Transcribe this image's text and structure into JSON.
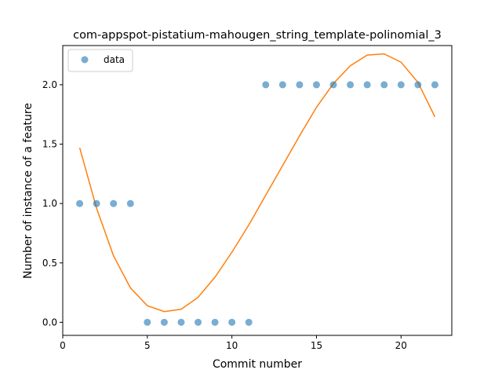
{
  "chart_data": {
    "type": "scatter",
    "title": "com-appspot-pistatium-mahougen_string_template-polinomial_3",
    "xlabel": "Commit number",
    "ylabel": "Number of instance of a feature",
    "xlim": [
      0,
      23
    ],
    "ylim": [
      -0.11,
      2.33
    ],
    "xticks": [
      0,
      5,
      10,
      15,
      20
    ],
    "yticks": [
      0.0,
      0.5,
      1.0,
      1.5,
      2.0
    ],
    "xtick_labels": [
      "0",
      "5",
      "10",
      "15",
      "20"
    ],
    "ytick_labels": [
      "0.0",
      "0.5",
      "1.0",
      "1.5",
      "2.0"
    ],
    "legend": {
      "position": "upper-left",
      "entries": [
        "data"
      ]
    },
    "grid": false,
    "series": [
      {
        "name": "data",
        "kind": "scatter",
        "color": "#1f77b4",
        "x": [
          1,
          2,
          3,
          4,
          5,
          6,
          7,
          8,
          9,
          10,
          11,
          12,
          13,
          14,
          15,
          16,
          17,
          18,
          19,
          20,
          21,
          22
        ],
        "y": [
          1,
          1,
          1,
          1,
          0,
          0,
          0,
          0,
          0,
          0,
          0,
          2,
          2,
          2,
          2,
          2,
          2,
          2,
          2,
          2,
          2,
          2
        ]
      },
      {
        "kind": "line",
        "color": "#ff7f0e",
        "x": [
          1,
          2,
          3,
          4,
          5,
          6,
          7,
          8,
          9,
          10,
          11,
          12,
          13,
          14,
          15,
          16,
          17,
          18,
          19,
          20,
          21,
          22
        ],
        "y": [
          1.47,
          0.96,
          0.56,
          0.29,
          0.14,
          0.09,
          0.11,
          0.21,
          0.38,
          0.59,
          0.82,
          1.07,
          1.32,
          1.57,
          1.81,
          2.01,
          2.16,
          2.25,
          2.26,
          2.19,
          2.02,
          1.73
        ]
      }
    ]
  }
}
